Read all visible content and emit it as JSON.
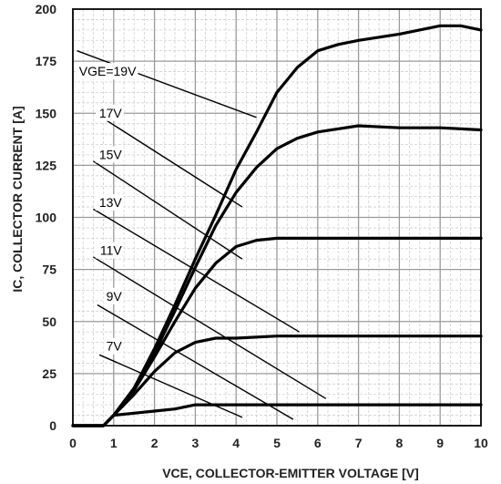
{
  "chart_data": {
    "type": "line",
    "title": "",
    "xlabel": "VCE, COLLECTOR-EMITTER VOLTAGE [V]",
    "ylabel": "IC, COLLECTOR CURRENT [A]",
    "xlim": [
      0,
      10
    ],
    "ylim": [
      0,
      200
    ],
    "xticks": [
      "0",
      "1",
      "2",
      "3",
      "4",
      "5",
      "6",
      "7",
      "8",
      "9",
      "10"
    ],
    "yticks": [
      "0",
      "25",
      "50",
      "75",
      "100",
      "125",
      "150",
      "175",
      "200"
    ],
    "grid": true,
    "series": [
      {
        "name": "VGE=19V",
        "label_pos": [
          1.55,
          168
        ],
        "label_anchor": [
          0.1,
          180
        ],
        "line_target": [
          4.5,
          148
        ],
        "points": [
          [
            0,
            0
          ],
          [
            0.75,
            0
          ],
          [
            1.0,
            5
          ],
          [
            1.5,
            18
          ],
          [
            2.0,
            37
          ],
          [
            2.5,
            58
          ],
          [
            3.0,
            80
          ],
          [
            3.5,
            101
          ],
          [
            4.0,
            123
          ],
          [
            4.5,
            141
          ],
          [
            5.0,
            160
          ],
          [
            5.5,
            172
          ],
          [
            6.0,
            180
          ],
          [
            6.5,
            183
          ],
          [
            7.0,
            185
          ],
          [
            8.0,
            188
          ],
          [
            9.0,
            192
          ],
          [
            9.5,
            192
          ],
          [
            10.0,
            190
          ]
        ]
      },
      {
        "name": "17V",
        "label_pos": [
          1.2,
          148
        ],
        "label_anchor": [
          0.55,
          150
        ],
        "line_target": [
          4.15,
          105
        ],
        "points": [
          [
            0,
            0
          ],
          [
            0.75,
            0
          ],
          [
            1.0,
            5
          ],
          [
            1.5,
            18
          ],
          [
            2.0,
            35
          ],
          [
            2.5,
            55
          ],
          [
            3.0,
            76
          ],
          [
            3.5,
            96
          ],
          [
            4.0,
            112
          ],
          [
            4.5,
            124
          ],
          [
            5.0,
            133
          ],
          [
            5.5,
            138
          ],
          [
            6.0,
            141
          ],
          [
            7.0,
            144
          ],
          [
            8.0,
            143
          ],
          [
            9.0,
            143
          ],
          [
            10.0,
            142
          ]
        ]
      },
      {
        "name": "15V",
        "label_pos": [
          1.2,
          128
        ],
        "label_anchor": [
          0.5,
          127
        ],
        "line_target": [
          4.15,
          80
        ],
        "points": [
          [
            0,
            0
          ],
          [
            0.75,
            0
          ],
          [
            1.0,
            5
          ],
          [
            1.5,
            17
          ],
          [
            2.0,
            33
          ],
          [
            2.5,
            50
          ],
          [
            3.0,
            66
          ],
          [
            3.5,
            78
          ],
          [
            4.0,
            86
          ],
          [
            4.5,
            89
          ],
          [
            5.0,
            90
          ],
          [
            6.0,
            90
          ],
          [
            7.0,
            90
          ],
          [
            8.0,
            90
          ],
          [
            9.0,
            90
          ],
          [
            10.0,
            90
          ]
        ]
      },
      {
        "name": "13V",
        "label_pos": [
          1.2,
          105
        ],
        "label_anchor": [
          0.5,
          104
        ],
        "line_target": [
          5.55,
          45
        ],
        "points": [
          [
            0,
            0
          ],
          [
            0.75,
            0
          ],
          [
            1.0,
            5
          ],
          [
            1.5,
            15
          ],
          [
            2.0,
            26
          ],
          [
            2.5,
            35
          ],
          [
            3.0,
            40
          ],
          [
            3.5,
            42
          ],
          [
            4.0,
            42
          ],
          [
            5.0,
            43
          ],
          [
            6.0,
            43
          ],
          [
            7.0,
            43
          ],
          [
            8.0,
            43
          ],
          [
            9.0,
            43
          ],
          [
            10.0,
            43
          ]
        ]
      },
      {
        "name": "11V",
        "label_pos": [
          1.2,
          82
        ],
        "label_anchor": [
          0.5,
          81
        ],
        "line_target": [
          6.2,
          13
        ],
        "points": [
          [
            0,
            0
          ],
          [
            0.75,
            0
          ],
          [
            1.0,
            5
          ],
          [
            1.5,
            6
          ],
          [
            2.0,
            7
          ],
          [
            2.5,
            8
          ],
          [
            3.0,
            10
          ],
          [
            3.5,
            10
          ],
          [
            4.0,
            10
          ],
          [
            5.0,
            10
          ],
          [
            6.0,
            10
          ],
          [
            7.0,
            10
          ],
          [
            8.0,
            10
          ],
          [
            9.0,
            10
          ],
          [
            10.0,
            10
          ]
        ]
      },
      {
        "name": "9V",
        "label_pos": [
          1.2,
          60
        ],
        "label_anchor": [
          0.6,
          58
        ],
        "line_target": [
          5.4,
          3
        ],
        "points": []
      },
      {
        "name": "7V",
        "label_pos": [
          1.2,
          36
        ],
        "label_anchor": [
          0.65,
          34
        ],
        "line_target": [
          4.15,
          4
        ],
        "points": []
      }
    ]
  }
}
